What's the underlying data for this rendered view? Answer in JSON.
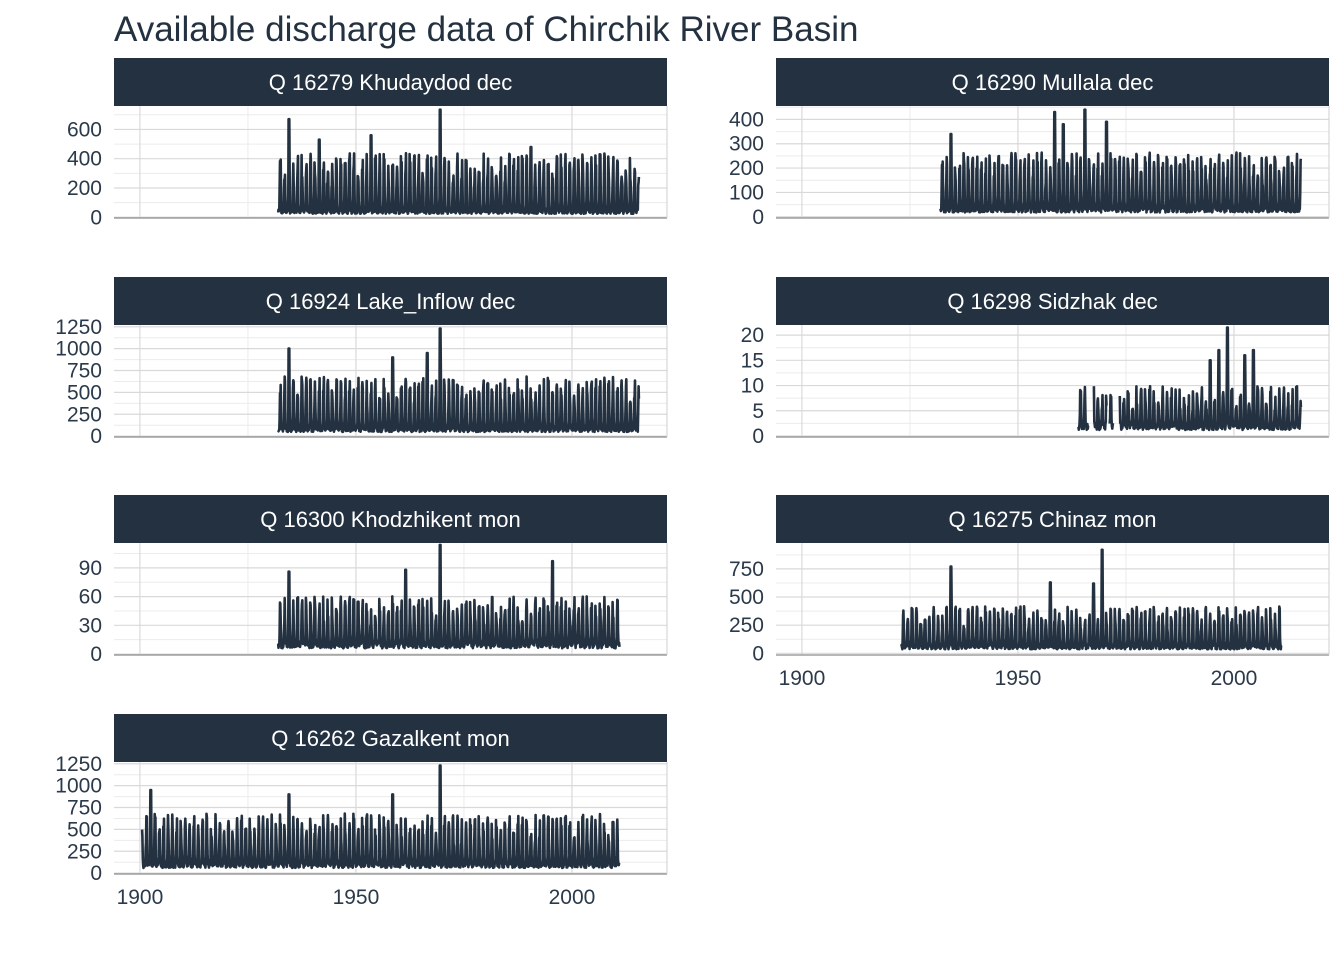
{
  "title": "Available discharge data of Chirchik River Basin",
  "colors": {
    "strip_background": "#233140",
    "series_line": "#233140",
    "grid": "#d9d9d9",
    "panel_border": "#8c8c8c",
    "strip_text": "#ffffff"
  },
  "chart_data": {
    "type": "line",
    "layout": "facet grid, 2 columns",
    "title": "Available discharge data of Chirchik River Basin",
    "xlabel": "",
    "ylabel": "",
    "x_ticks": [
      1900,
      1950,
      2000
    ],
    "xlim": [
      1894,
      2022
    ],
    "grid": true,
    "legend": "none",
    "panels": [
      {
        "name": "Q 16279 Khudaydod dec",
        "y_ticks": [
          0,
          200,
          400,
          600
        ],
        "ylim": [
          -5,
          760
        ],
        "start": 1932,
        "end": 2015.5,
        "period": 1,
        "peaks_per_year": 1,
        "base": 40,
        "typical_peak": 400,
        "spikes": [
          {
            "year": 1934.5,
            "value": 670
          },
          {
            "year": 1969.6,
            "value": 735
          },
          {
            "year": 1941.5,
            "value": 530
          },
          {
            "year": 1953.7,
            "value": 560
          },
          {
            "year": 1990.3,
            "value": 480
          }
        ]
      },
      {
        "name": "Q 16290 Mullala dec",
        "y_ticks": [
          0,
          100,
          200,
          300,
          400
        ],
        "ylim": [
          -5,
          455
        ],
        "start": 1932,
        "end": 2015.5,
        "period": 1,
        "peaks_per_year": 1,
        "base": 30,
        "typical_peak": 240,
        "spikes": [
          {
            "year": 1934.5,
            "value": 340
          },
          {
            "year": 1958.5,
            "value": 430
          },
          {
            "year": 1960.5,
            "value": 380
          },
          {
            "year": 1965.5,
            "value": 440
          },
          {
            "year": 1970.5,
            "value": 390
          }
        ]
      },
      {
        "name": "Q 16924 Lake_Inflow dec",
        "y_ticks": [
          0,
          250,
          500,
          750,
          1000,
          1250
        ],
        "ylim": [
          -10,
          1270
        ],
        "start": 1932,
        "end": 2015.5,
        "period": 1,
        "peaks_per_year": 1,
        "base": 80,
        "typical_peak": 620,
        "spikes": [
          {
            "year": 1934.5,
            "value": 1000
          },
          {
            "year": 1969.6,
            "value": 1230
          },
          {
            "year": 1958.5,
            "value": 900
          },
          {
            "year": 1966.5,
            "value": 950
          }
        ]
      },
      {
        "name": "Q 16298 Sidzhak dec",
        "y_ticks": [
          0,
          5,
          10,
          15,
          20
        ],
        "ylim": [
          -0.2,
          22
        ],
        "gaps": [
          [
            1966.3,
            1967.5
          ],
          [
            1970.5,
            1971.2
          ],
          [
            1972,
            1973.5
          ]
        ],
        "start": 1964,
        "end": 2015.5,
        "period": 1,
        "peaks_per_year": 1,
        "base": 2,
        "typical_peak": 9,
        "spikes": [
          {
            "year": 1998.5,
            "value": 21.5
          },
          {
            "year": 1996.5,
            "value": 17
          },
          {
            "year": 2002.5,
            "value": 16
          },
          {
            "year": 2004.5,
            "value": 17
          },
          {
            "year": 1994.5,
            "value": 15
          }
        ]
      },
      {
        "name": "Q 16300 Khodzhikent mon",
        "y_ticks": [
          0,
          30,
          60,
          90
        ],
        "ylim": [
          -1,
          116
        ],
        "start": 1932,
        "end": 2011,
        "period": 1,
        "peaks_per_year": 1,
        "base": 10,
        "typical_peak": 55,
        "spikes": [
          {
            "year": 1934.5,
            "value": 86
          },
          {
            "year": 1969.6,
            "value": 114
          },
          {
            "year": 1961.5,
            "value": 88
          },
          {
            "year": 1995.5,
            "value": 97
          }
        ]
      },
      {
        "name": "Q 16275 Chinaz mon",
        "y_ticks": [
          0,
          250,
          500,
          750
        ],
        "ylim": [
          -15,
          980
        ],
        "start": 1923,
        "end": 2011,
        "period": 1,
        "peaks_per_year": 1,
        "base": 60,
        "typical_peak": 380,
        "spikes": [
          {
            "year": 1969.6,
            "value": 920
          },
          {
            "year": 1934.5,
            "value": 770
          },
          {
            "year": 1957.5,
            "value": 630
          },
          {
            "year": 1967.5,
            "value": 620
          }
        ]
      },
      {
        "name": "Q 16262 Gazalkent mon",
        "y_ticks": [
          0,
          250,
          500,
          750,
          1000,
          1250
        ],
        "ylim": [
          -10,
          1270
        ],
        "start": 1900.5,
        "end": 2011,
        "period": 1,
        "peaks_per_year": 1,
        "base": 100,
        "typical_peak": 620,
        "spikes": [
          {
            "year": 1902.5,
            "value": 950
          },
          {
            "year": 1969.6,
            "value": 1230
          },
          {
            "year": 1934.5,
            "value": 900
          },
          {
            "year": 1958.5,
            "value": 900
          }
        ]
      }
    ]
  }
}
